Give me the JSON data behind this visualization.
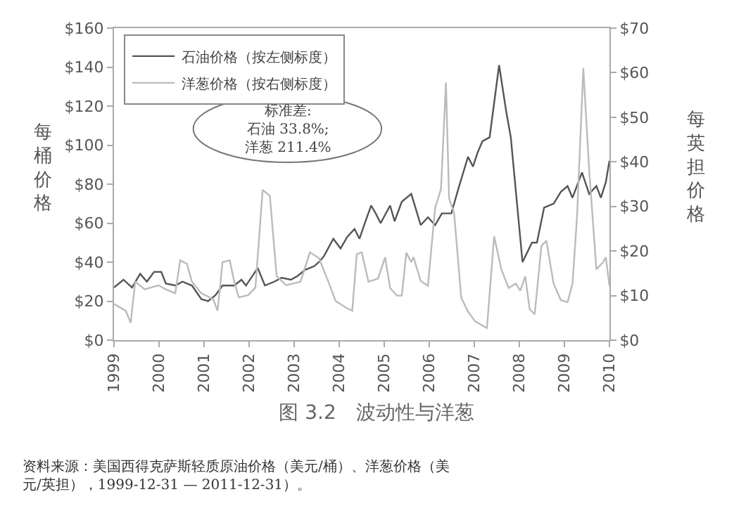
{
  "chart_data": {
    "type": "line",
    "title": "图 3.2　波动性与洋葱",
    "ylabel": "每桶价格",
    "y2label": "每英担价格",
    "annotations": [
      "标准差:\n石油 33.8%;\n洋葱 211.4%",
      "资料来源：美国西得克萨斯轻质原油价格（美元/桶）、洋葱价格（美元/英担），1999-12-31 — 2011-12-31）。"
    ],
    "xlim": [
      1999,
      2010
    ],
    "xticks": [
      1999,
      2000,
      2001,
      2002,
      2003,
      2004,
      2005,
      2006,
      2007,
      2008,
      2009,
      2010
    ],
    "ylim": [
      0,
      160
    ],
    "yticks": [
      {
        "value": 0,
        "label": "$0"
      },
      {
        "value": 20,
        "label": "$20"
      },
      {
        "value": 40,
        "label": "$40"
      },
      {
        "value": 60,
        "label": "$60"
      },
      {
        "value": 80,
        "label": "$80"
      },
      {
        "value": 100,
        "label": "$100"
      },
      {
        "value": 120,
        "label": "$120"
      },
      {
        "value": 140,
        "label": "$140"
      },
      {
        "value": 160,
        "label": "$160"
      }
    ],
    "y2lim": [
      0,
      70
    ],
    "y2ticks": [
      {
        "value": 0,
        "label": "$0"
      },
      {
        "value": 10,
        "label": "$10"
      },
      {
        "value": 20,
        "label": "$20"
      },
      {
        "value": 30,
        "label": "$30"
      },
      {
        "value": 40,
        "label": "$40"
      },
      {
        "value": 50,
        "label": "$50"
      },
      {
        "value": 60,
        "label": "$60"
      },
      {
        "value": 70,
        "label": "$70"
      }
    ],
    "grid": false,
    "legend": "top left",
    "marker": "none",
    "line_style": "solid",
    "series": [
      {
        "name": "石油价格（按左侧标度）",
        "color": "#555555",
        "x": [
          1999.0,
          1999.21,
          1999.4,
          1999.58,
          1999.73,
          1999.89,
          2000.05,
          2000.15,
          2000.36,
          2000.52,
          2000.73,
          2000.94,
          2001.09,
          2001.25,
          2001.41,
          2001.67,
          2001.83,
          2001.93,
          2002.19,
          2002.35,
          2002.56,
          2002.72,
          2002.93,
          2003.08,
          2003.24,
          2003.45,
          2003.55,
          2003.66,
          2003.87,
          2004.03,
          2004.18,
          2004.34,
          2004.45,
          2004.6,
          2004.71,
          2004.81,
          2004.92,
          2005.13,
          2005.23,
          2005.39,
          2005.6,
          2005.81,
          2005.97,
          2006.13,
          2006.28,
          2006.49,
          2006.65,
          2006.86,
          2006.97,
          2007.07,
          2007.18,
          2007.34,
          2007.55,
          2007.71,
          2007.81,
          2008.07,
          2008.28,
          2008.39,
          2008.55,
          2008.76,
          2008.92,
          2009.07,
          2009.18,
          2009.39,
          2009.55,
          2009.71,
          2009.81,
          2009.92,
          2010.0
        ],
        "values": [
          27,
          31,
          27,
          34,
          30,
          35,
          35,
          29,
          28,
          30,
          28,
          21,
          20,
          23,
          28,
          28,
          31,
          28,
          37,
          28,
          30,
          32,
          31,
          33,
          36,
          38,
          40,
          43,
          52,
          47,
          53,
          57,
          52,
          62,
          69,
          65,
          60,
          69,
          61,
          71,
          75,
          59,
          63,
          59,
          65,
          65,
          78,
          94,
          89,
          96,
          102,
          104,
          141,
          117,
          104,
          40,
          50,
          50,
          68,
          70,
          76,
          79,
          73,
          86,
          75,
          79,
          73,
          81,
          92
        ]
      },
      {
        "name": "洋葱价格（按右侧标度）",
        "color": "#bbbbbb",
        "axis": "y2",
        "x": [
          1999.0,
          1999.26,
          1999.37,
          1999.47,
          1999.68,
          1999.99,
          2000.15,
          2000.36,
          2000.47,
          2000.62,
          2000.73,
          2000.94,
          2001.2,
          2001.3,
          2001.41,
          2001.57,
          2001.67,
          2001.77,
          2001.98,
          2002.14,
          2002.3,
          2002.46,
          2002.61,
          2002.82,
          2002.98,
          2003.14,
          2003.35,
          2003.55,
          2003.76,
          2003.92,
          2004.13,
          2004.29,
          2004.39,
          2004.5,
          2004.65,
          2004.86,
          2005.02,
          2005.13,
          2005.28,
          2005.39,
          2005.49,
          2005.6,
          2005.65,
          2005.81,
          2005.97,
          2006.13,
          2006.26,
          2006.37,
          2006.44,
          2006.55,
          2006.71,
          2006.86,
          2007.02,
          2007.28,
          2007.44,
          2007.6,
          2007.76,
          2007.92,
          2008.02,
          2008.13,
          2008.23,
          2008.34,
          2008.49,
          2008.6,
          2008.76,
          2008.92,
          2009.07,
          2009.18,
          2009.28,
          2009.42,
          2009.55,
          2009.71,
          2009.86,
          2009.92,
          2010.0
        ],
        "values": [
          8.1,
          6.6,
          3.9,
          13.1,
          11.4,
          12.3,
          11.4,
          10.5,
          17.9,
          17.1,
          13.1,
          10.5,
          9.2,
          6.6,
          17.5,
          17.9,
          13.1,
          9.6,
          10.1,
          11.8,
          33.7,
          32.4,
          14.4,
          12.3,
          12.7,
          13.1,
          19.7,
          18.4,
          13.1,
          8.8,
          7.4,
          6.6,
          19.3,
          19.7,
          13.1,
          13.8,
          18.6,
          11.7,
          10,
          10,
          19.6,
          17.5,
          18.6,
          13.3,
          12.2,
          29.7,
          33.9,
          57.8,
          31.8,
          28.6,
          9.5,
          6.4,
          4.2,
          2.7,
          23.3,
          15.9,
          11.7,
          12.7,
          11.1,
          14.3,
          6.9,
          5.8,
          21.2,
          22.3,
          12.7,
          9,
          8.5,
          12.7,
          27.6,
          61,
          38.2,
          15.9,
          17.5,
          18.6,
          12.2
        ]
      }
    ]
  }
}
